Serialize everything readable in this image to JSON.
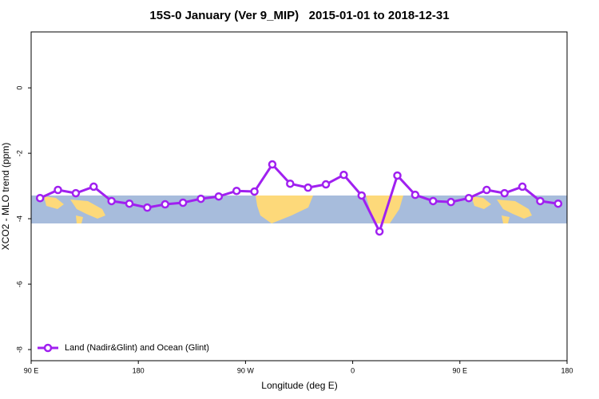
{
  "chart_data": {
    "type": "line",
    "title": "15S-0 January (Ver 9_MIP)   2015-01-01 to 2018-12-31",
    "x_label": "Longitude (deg E)",
    "y_label": "XCO2 - MLO trend (ppm)",
    "xlim": [
      90,
      540
    ],
    "ylim": [
      -8.34,
      1.71
    ],
    "xticks": [
      {
        "value": 90,
        "label": "90 E"
      },
      {
        "value": 180,
        "label": "180"
      },
      {
        "value": 270,
        "label": "90 W"
      },
      {
        "value": 360,
        "label": "0"
      },
      {
        "value": 450,
        "label": "90 E"
      },
      {
        "value": 540,
        "label": "180"
      }
    ],
    "yticks": [
      0,
      -2,
      -4,
      -6,
      -8
    ],
    "legend_position": "bottom-left",
    "x": [
      97.5,
      112.5,
      127.5,
      142.5,
      157.5,
      172.5,
      187.5,
      202.5,
      217.5,
      232.5,
      247.5,
      262.5,
      277.5,
      292.5,
      307.5,
      322.5,
      337.5,
      352.5,
      367.5,
      382.5,
      397.5,
      412.5,
      427.5,
      442.5,
      457.5,
      472.5,
      487.5,
      502.5,
      517.5,
      532.5
    ],
    "series": [
      {
        "name": "Land (Nadir&Glint) and Ocean (Glint)",
        "color": "#a020f0",
        "values": [
          -3.37,
          -3.12,
          -3.22,
          -3.02,
          -3.46,
          -3.54,
          -3.66,
          -3.56,
          -3.51,
          -3.39,
          -3.32,
          -3.15,
          -3.17,
          -2.34,
          -2.93,
          -3.05,
          -2.95,
          -2.66,
          -3.29,
          -4.39,
          -2.68,
          -3.27,
          -3.46,
          -3.49,
          -3.37,
          -3.12,
          -3.22,
          -3.02,
          -3.46,
          -3.54
        ]
      }
    ]
  }
}
